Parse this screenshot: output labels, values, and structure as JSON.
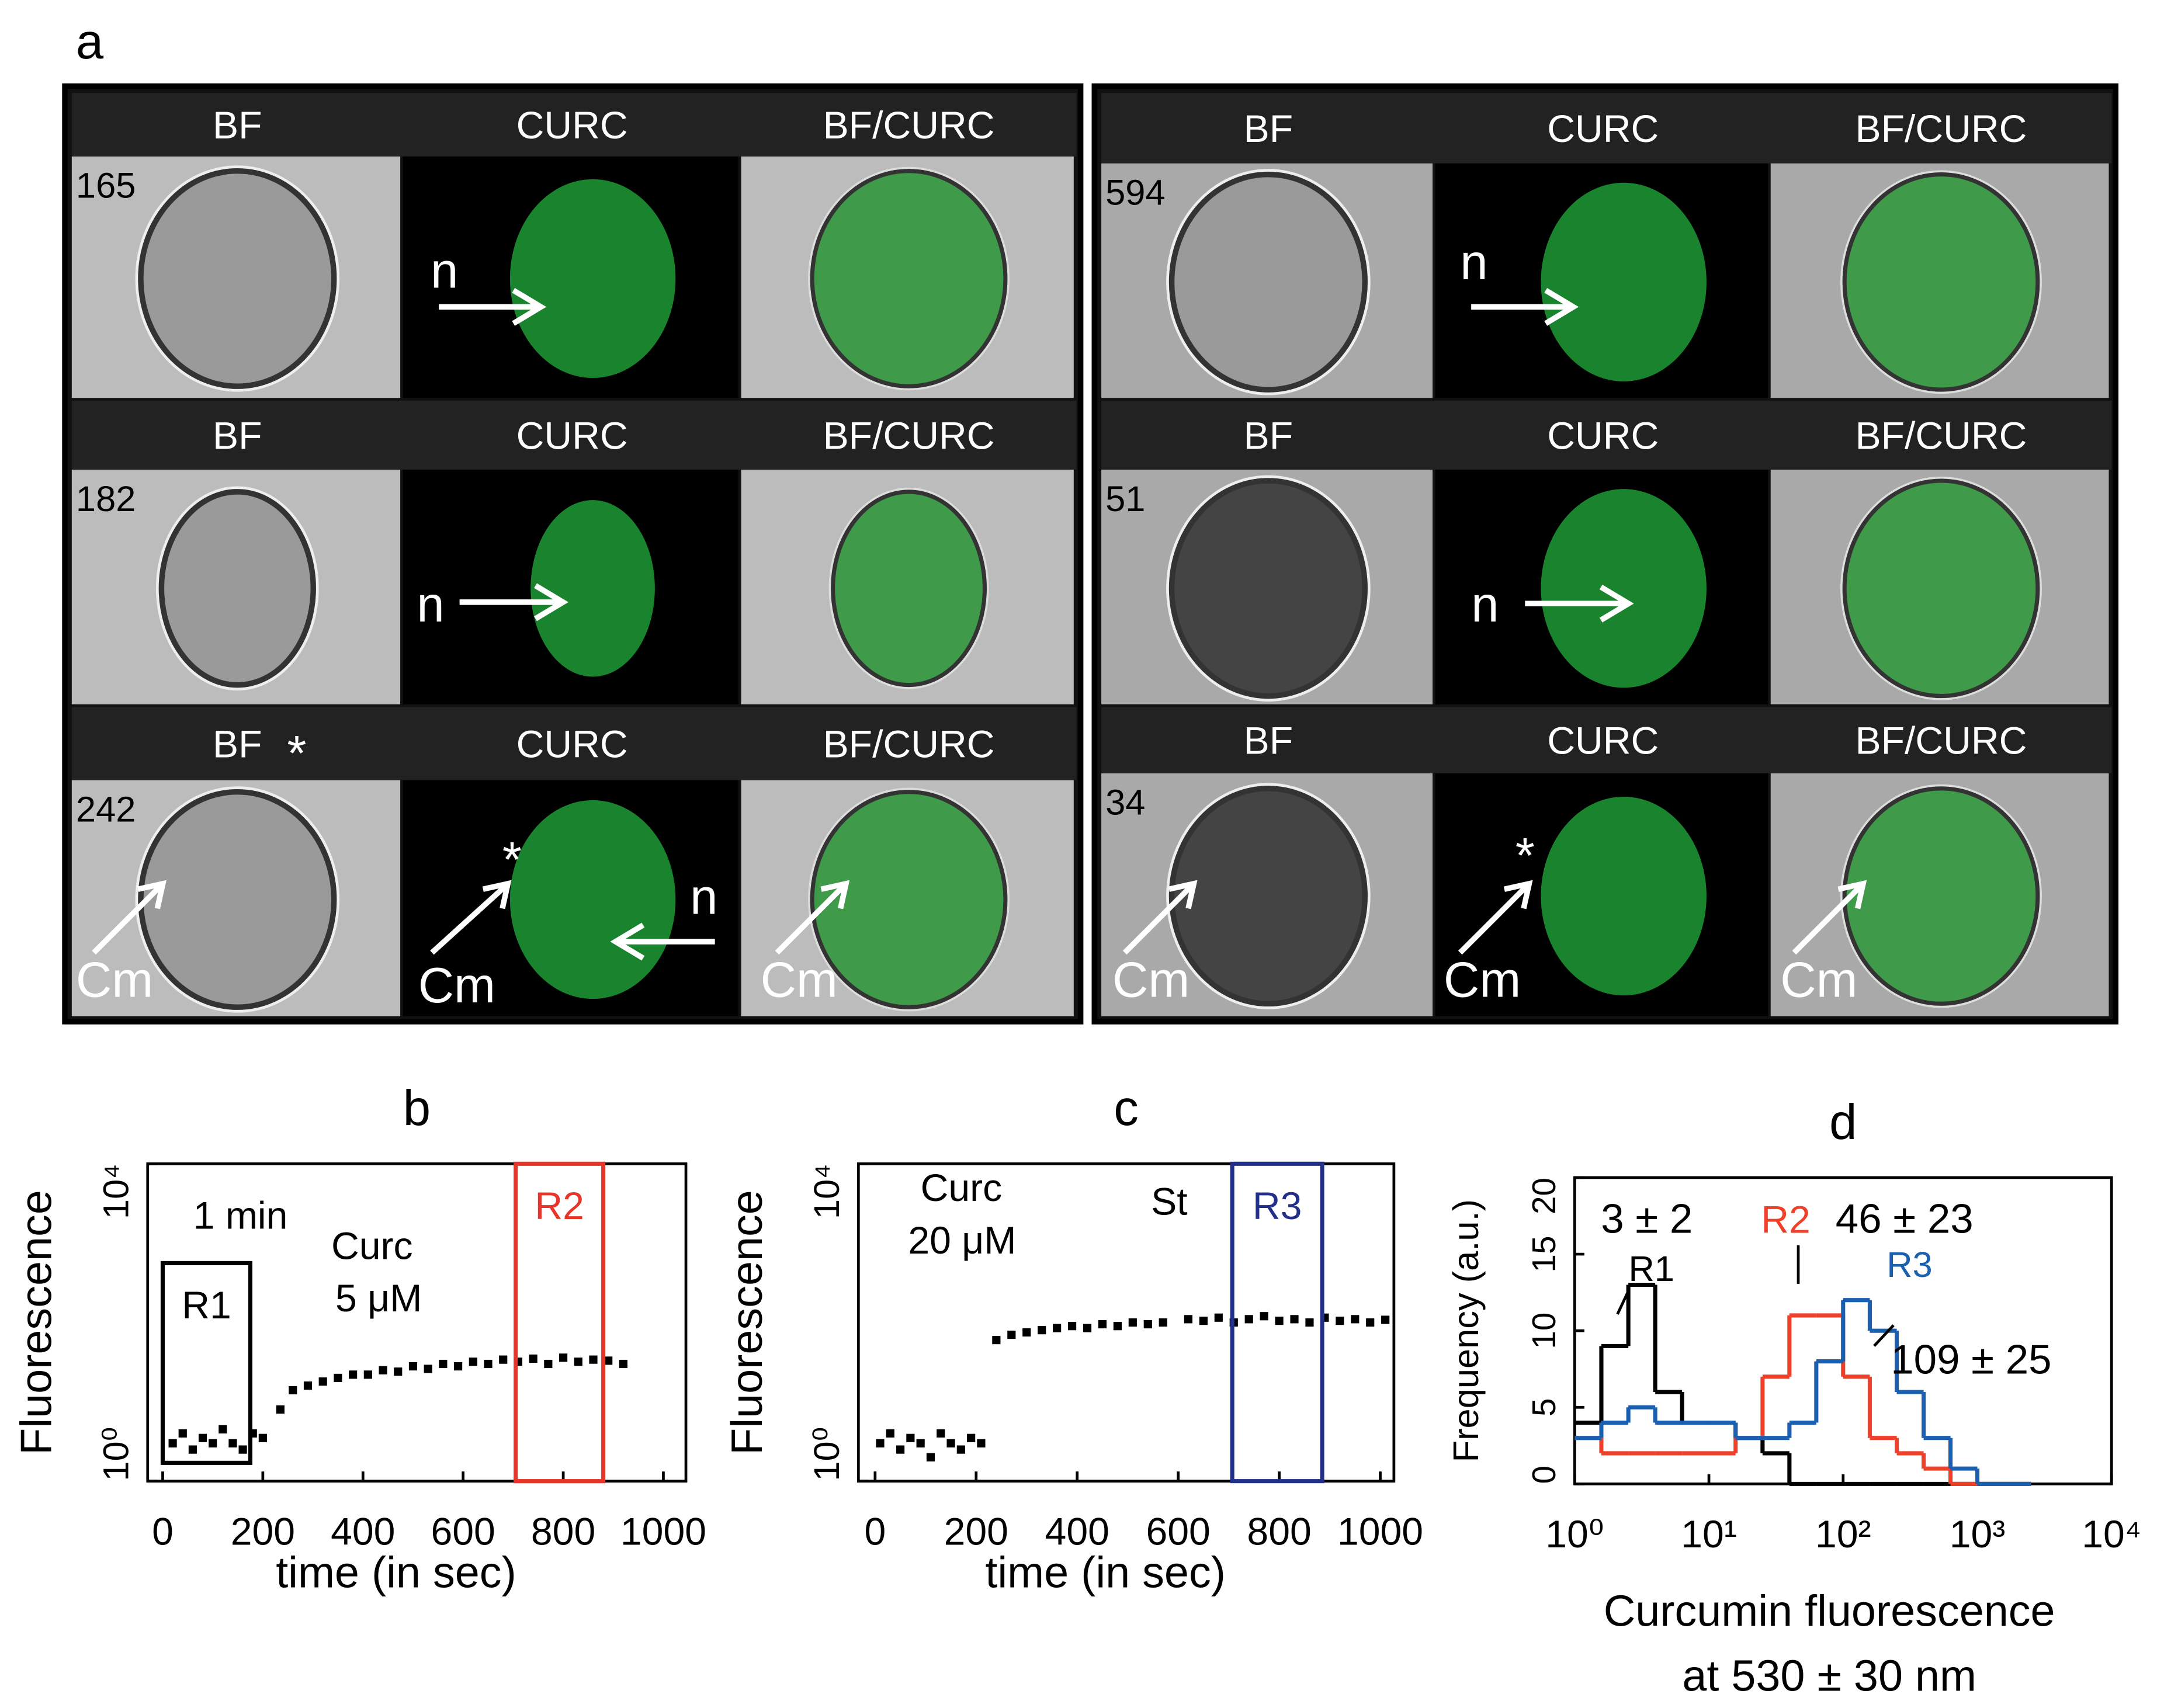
{
  "panel_a": {
    "label": "a",
    "panels": [
      {
        "rows": [
          {
            "number": "165",
            "headers": [
              "BF",
              "CURC",
              "BF/CURC"
            ],
            "annotations": [
              "n"
            ]
          },
          {
            "number": "182",
            "headers": [
              "BF",
              "CURC",
              "BF/CURC"
            ],
            "annotations": [
              "n"
            ]
          },
          {
            "number": "242",
            "headers": [
              "BF",
              "CURC",
              "BF/CURC"
            ],
            "annotations": [
              "*",
              "Cm",
              "*",
              "Cm",
              "n",
              "Cm"
            ]
          }
        ]
      },
      {
        "rows": [
          {
            "number": "594",
            "headers": [
              "BF",
              "CURC",
              "BF/CURC"
            ],
            "annotations": [
              "n"
            ]
          },
          {
            "number": "51",
            "headers": [
              "BF",
              "CURC",
              "BF/CURC"
            ],
            "annotations": [
              "n"
            ]
          },
          {
            "number": "34",
            "headers": [
              "BF",
              "CURC",
              "BF/CURC"
            ],
            "annotations": [
              "Cm",
              "*",
              "Cm",
              "Cm"
            ]
          }
        ]
      }
    ]
  },
  "chart_data": [
    {
      "type": "scatter",
      "title": "b",
      "xlabel": "time (in sec)",
      "ylabel": "Fluorescence",
      "color": "#000000",
      "x": [
        20,
        40,
        60,
        80,
        100,
        120,
        140,
        160,
        180,
        200,
        235,
        260,
        290,
        320,
        350,
        380,
        410,
        440,
        470,
        500,
        530,
        560,
        590,
        620,
        650,
        680,
        710,
        740,
        770,
        800,
        830,
        860,
        890,
        920
      ],
      "values": [
        3,
        4,
        2.5,
        3.5,
        3,
        4.5,
        3,
        2.5,
        4,
        3.5,
        8,
        14,
        16,
        18,
        20,
        22,
        22,
        25,
        24,
        28,
        26,
        30,
        28,
        32,
        30,
        34,
        32,
        35,
        30,
        36,
        32,
        34,
        33,
        30
      ],
      "xlim": [
        -30,
        1045
      ],
      "ylim": [
        1,
        10000
      ],
      "ylog": true,
      "xticks": [
        0,
        200,
        400,
        600,
        800,
        1000
      ],
      "yticks": [
        {
          "value": 1,
          "label": "10⁰"
        },
        {
          "value": 10000,
          "label": "10⁴"
        }
      ],
      "regions": [
        {
          "label": "R1",
          "x": [
            0,
            175
          ],
          "y": [
            1.7,
            560
          ],
          "color": "#000000"
        },
        {
          "label": "R2",
          "x": [
            705,
            880
          ],
          "y": [
            1,
            10000
          ],
          "color": "#e8352a"
        }
      ],
      "annotations": [
        "1 min",
        "Curc",
        "5 μM"
      ]
    },
    {
      "type": "scatter",
      "title": "c",
      "xlabel": "time (in sec)",
      "ylabel": "Fluorescence",
      "color": "#000000",
      "x": [
        10,
        30,
        50,
        70,
        90,
        110,
        130,
        150,
        170,
        190,
        210,
        240,
        270,
        300,
        330,
        360,
        390,
        420,
        450,
        480,
        510,
        540,
        570,
        620,
        650,
        680,
        710,
        740,
        770,
        800,
        830,
        860,
        890,
        920,
        950,
        980,
        1010
      ],
      "values": [
        3,
        4,
        2.5,
        3.5,
        3,
        2,
        4,
        3,
        2.5,
        3.5,
        3,
        60,
        70,
        75,
        80,
        85,
        90,
        85,
        95,
        90,
        100,
        95,
        100,
        110,
        105,
        115,
        100,
        110,
        120,
        105,
        110,
        100,
        115,
        105,
        110,
        100,
        108
      ],
      "xlim": [
        -33,
        1027
      ],
      "ylim": [
        1,
        10000
      ],
      "ylog": true,
      "xticks": [
        0,
        200,
        400,
        600,
        800,
        1000
      ],
      "yticks": [
        {
          "value": 1,
          "label": "10⁰"
        },
        {
          "value": 10000,
          "label": "10⁴"
        }
      ],
      "regions": [
        {
          "label": "R3",
          "x": [
            707,
            885
          ],
          "y": [
            1,
            10000
          ],
          "color": "#23308a"
        }
      ],
      "annotations": [
        "Curc",
        "20 μM",
        "St"
      ]
    },
    {
      "type": "histogram",
      "title": "d",
      "xlabel": [
        "Curcumin fluorescence",
        "at 530 ± 30 nm"
      ],
      "ylabel": "Frequency (a.u.)",
      "bins": [
        1,
        1.58,
        2.51,
        3.98,
        6.31,
        10,
        15.8,
        25.1,
        39.8,
        63.1,
        100,
        158,
        251,
        398,
        631,
        1000,
        1585,
        2512
      ],
      "series": [
        {
          "name": "R1",
          "color": "#000000",
          "values": [
            4,
            9,
            13,
            6,
            4,
            4,
            3,
            2,
            0,
            0,
            0,
            0,
            0,
            0,
            0,
            0,
            0
          ]
        },
        {
          "name": "R2",
          "color": "#f0402a",
          "values": [
            3,
            2,
            2,
            2,
            2,
            2,
            3,
            7,
            11,
            11,
            7,
            3,
            2,
            1,
            0,
            0,
            0
          ]
        },
        {
          "name": "R3",
          "color": "#1a5fb0",
          "values": [
            3,
            4,
            5,
            4,
            4,
            4,
            3,
            3,
            4,
            8,
            12,
            10,
            6,
            3,
            1,
            0,
            0
          ]
        }
      ],
      "xlim": [
        1,
        10000
      ],
      "xlog": true,
      "ylim": [
        0,
        20
      ],
      "xticks": [
        {
          "value": 1,
          "label": "10⁰"
        },
        {
          "value": 10,
          "label": "10¹"
        },
        {
          "value": 100,
          "label": "10²"
        },
        {
          "value": 1000,
          "label": "10³"
        },
        {
          "value": 10000,
          "label": "10⁴"
        }
      ],
      "yticks": [
        0,
        5,
        10,
        15,
        20
      ],
      "annotations": [
        "3 ± 2",
        "46 ± 23",
        "109 ± 25"
      ]
    }
  ]
}
